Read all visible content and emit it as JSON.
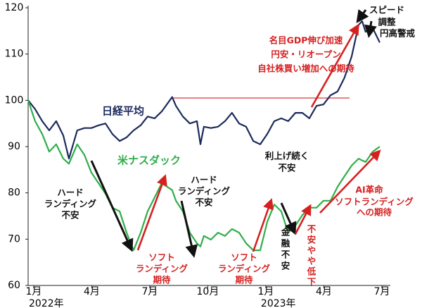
{
  "chart_data": {
    "type": "line",
    "x": [
      -0.29,
      0.07,
      0.44,
      0.8,
      1.16,
      1.53,
      1.82,
      2.25,
      2.62,
      2.98,
      3.35,
      3.71,
      4.07,
      4.44,
      4.8,
      5.16,
      5.53,
      5.89,
      6.25,
      6.62,
      7.16,
      7.35,
      7.71,
      8.07,
      8.44,
      8.62,
      8.8,
      9.16,
      9.53,
      9.89,
      10.25,
      10.62,
      10.98,
      11.35,
      11.71,
      12.07,
      12.44,
      12.8,
      13.16,
      13.53,
      13.89,
      14.25,
      14.62,
      14.98,
      15.35,
      15.71,
      16.07,
      16.44,
      16.8,
      16.98,
      17.16,
      17.53,
      17.89
    ],
    "series": [
      {
        "name": "日経平均",
        "color": "#1b2a5c",
        "values": [
          100,
          98.1,
          95.5,
          93.5,
          95.5,
          92.4,
          87.4,
          93.5,
          94,
          94,
          94.6,
          95,
          92.7,
          91.2,
          92,
          93.5,
          94.6,
          96.5,
          96.1,
          97.6,
          100.7,
          98.8,
          96.5,
          95,
          95.5,
          90.5,
          94.3,
          94,
          94.3,
          95.5,
          97.3,
          95,
          94.3,
          91.2,
          90.5,
          92.7,
          95.5,
          96.1,
          95.5,
          97.3,
          97.3,
          96.1,
          98.8,
          99.1,
          101.1,
          101.9,
          104.9,
          109.5,
          116.3,
          117.1,
          114.8,
          115.6,
          112.5
        ]
      },
      {
        "name": "米ナスダック",
        "color": "#2fae4a",
        "values": [
          100,
          95.5,
          92.7,
          88.9,
          90.5,
          87.4,
          86.3,
          90.5,
          88.2,
          84.4,
          82.1,
          79.8,
          76.8,
          76,
          71.4,
          67.6,
          71.4,
          76,
          79,
          82.1,
          80.6,
          78.3,
          76,
          71.4,
          69.1,
          68.4,
          70.7,
          69.9,
          71.4,
          70.7,
          72.2,
          71.4,
          69.1,
          67.6,
          67.6,
          73.7,
          77.5,
          76,
          71.4,
          72.9,
          75.2,
          76.8,
          76.8,
          78.3,
          78.3,
          81.3,
          83.6,
          85.9,
          87.4,
          87,
          86.7,
          88.9,
          90
        ]
      }
    ],
    "xlim": [
      -0.29,
      18.44
    ],
    "ylim": [
      60,
      120
    ],
    "yticks": [
      60,
      70,
      80,
      90,
      100,
      110,
      120
    ],
    "xticks": [
      {
        "value": 0,
        "label": "1月"
      },
      {
        "value": 3,
        "label": "4月"
      },
      {
        "value": 6,
        "label": "7月"
      },
      {
        "value": 9,
        "label": "10月"
      },
      {
        "value": 12,
        "label": "1月"
      },
      {
        "value": 15,
        "label": "4月"
      },
      {
        "value": 18,
        "label": "7月"
      }
    ],
    "x_year_labels": [
      {
        "value": 0,
        "label": "2022年"
      },
      {
        "value": 12,
        "label": "2023年"
      }
    ],
    "reference_line": {
      "value": 100.5,
      "x": [
        7.16,
        16.33
      ],
      "color": "#d62020"
    },
    "grid": false,
    "annotations": [
      {
        "lines": [
          "日経平均"
        ],
        "color": "#1b2a5c"
      },
      {
        "lines": [
          "米ナスダック"
        ],
        "color": "#2fae4a"
      },
      {
        "lines": [
          "ハード",
          "ランディング",
          "不安"
        ],
        "color": "#111111"
      },
      {
        "lines": [
          "ソフト",
          "ランディング",
          "期待"
        ],
        "color": "#d62020"
      },
      {
        "lines": [
          "ハード",
          "ランディング",
          "不安"
        ],
        "color": "#111111"
      },
      {
        "lines": [
          "ソフト",
          "ランディング",
          "期待"
        ],
        "color": "#d62020"
      },
      {
        "lines": [
          "利上げ続く",
          "不安"
        ],
        "color": "#111111"
      },
      {
        "lines": [
          "金",
          "融",
          "不",
          "安"
        ],
        "color": "#111111"
      },
      {
        "lines": [
          "不",
          "安",
          "や",
          "や",
          "低",
          "下"
        ],
        "color": "#d62020"
      },
      {
        "lines": [
          "AI革命"
        ],
        "color": "#d62020"
      },
      {
        "lines": [
          "ソフトランディング",
          "への期待"
        ],
        "color": "#d62020"
      },
      {
        "lines": [
          "名目GDP伸び加速",
          "円安・リオープン",
          "自社株買い増加への期待"
        ],
        "color": "#d62020"
      },
      {
        "lines": [
          "スピード",
          "調整"
        ],
        "color": "#111111"
      },
      {
        "lines": [
          "円高警戒"
        ],
        "color": "#111111"
      }
    ]
  }
}
